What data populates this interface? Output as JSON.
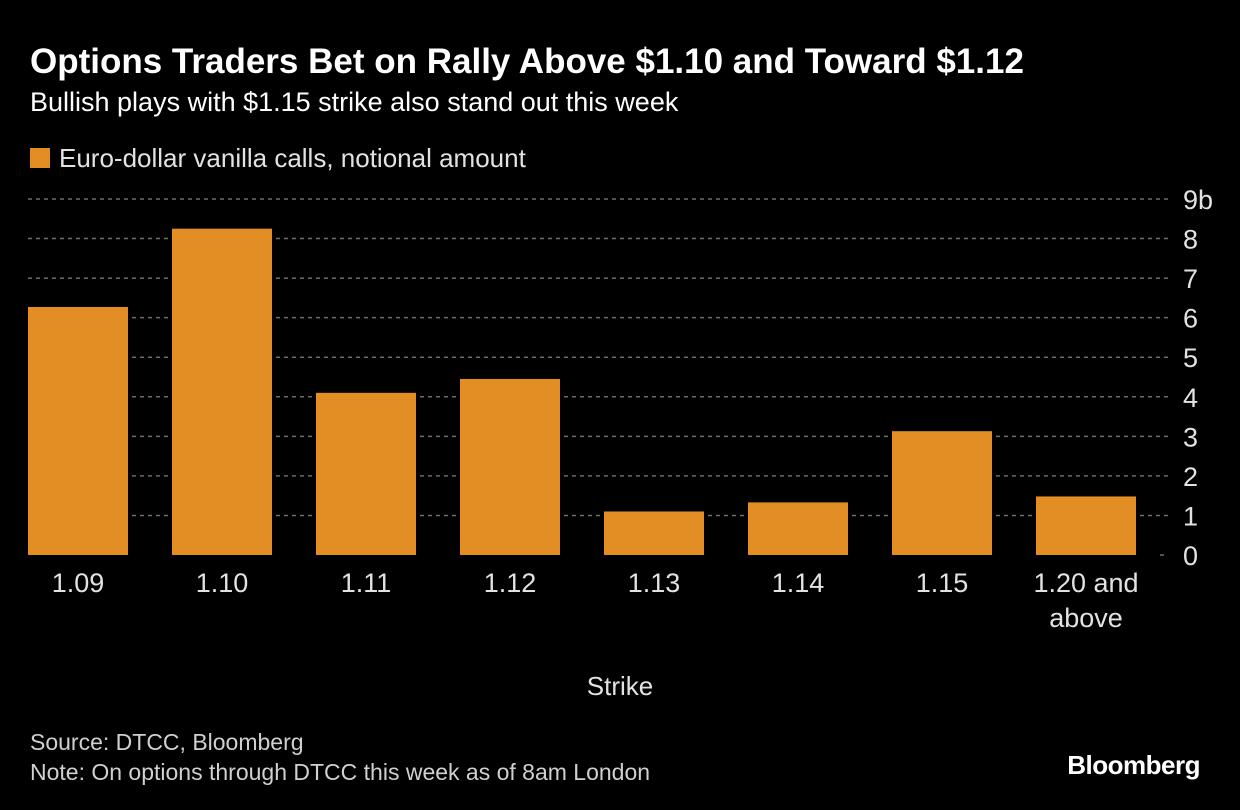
{
  "header": {
    "title": "Options Traders Bet on Rally Above $1.10 and Toward $1.12",
    "subtitle": "Bullish plays with $1.15 strike also stand out this week"
  },
  "footer": {
    "source": "Source: DTCC, Bloomberg",
    "note": "Note: On options through DTCC this week as of 8am London",
    "brand": "Bloomberg"
  },
  "chart_data": {
    "type": "bar",
    "title": "Options Traders Bet on Rally Above $1.10 and Toward $1.12",
    "subtitle": "Bullish plays with $1.15 strike also stand out this week",
    "xlabel": "Strike",
    "ylabel": "",
    "categories": [
      "1.09",
      "1.10",
      "1.11",
      "1.12",
      "1.13",
      "1.14",
      "1.15",
      "1.20 and above"
    ],
    "series": [
      {
        "name": "Euro-dollar vanilla calls, notional amount",
        "color": "#e28e25",
        "values": [
          6.27,
          8.25,
          4.1,
          4.45,
          1.1,
          1.33,
          3.13,
          1.48
        ]
      }
    ],
    "ylim": [
      0,
      9
    ],
    "y_ticks": [
      "0",
      "1",
      "2",
      "3",
      "4",
      "5",
      "6",
      "7",
      "8",
      "9b"
    ],
    "y_axis_position": "right",
    "grid": true,
    "legend_position": "top-left",
    "colors": {
      "background": "#000000",
      "bar": "#e28e25",
      "grid": "#6e6e6e",
      "text": "#ffffff"
    }
  }
}
